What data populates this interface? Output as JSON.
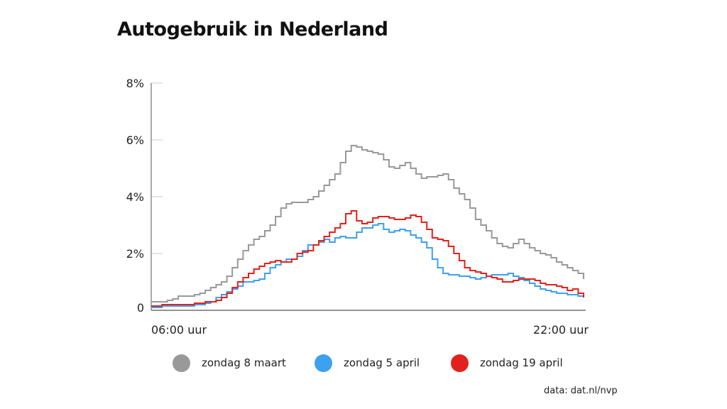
{
  "title": "Autogebruik in Nederland",
  "source": "data: dat.nl/nvp",
  "chart_data": {
    "type": "line",
    "title": "Autogebruik in Nederland",
    "xlabel": "",
    "ylabel": "",
    "x_tick_labels": [
      "06:00 uur",
      "22:00 uur"
    ],
    "x_range_hours": [
      6,
      22
    ],
    "y_ticks": [
      {
        "value": 0,
        "label": "0"
      },
      {
        "value": 2,
        "label": "2%"
      },
      {
        "value": 4,
        "label": "4%"
      },
      {
        "value": 6,
        "label": "6%"
      },
      {
        "value": 8,
        "label": "8%"
      }
    ],
    "ylim": [
      0,
      8
    ],
    "grid": false,
    "legend_position": "bottom",
    "step_hours": 0.25,
    "series": [
      {
        "name": "zondag 8 maart",
        "color": "#999999",
        "values": [
          0.3,
          0.3,
          0.3,
          0.35,
          0.4,
          0.5,
          0.5,
          0.5,
          0.55,
          0.6,
          0.7,
          0.8,
          0.9,
          1.0,
          1.2,
          1.5,
          1.8,
          2.1,
          2.3,
          2.5,
          2.6,
          2.8,
          3.0,
          3.3,
          3.6,
          3.75,
          3.8,
          3.8,
          3.8,
          3.9,
          4.0,
          4.2,
          4.4,
          4.6,
          4.8,
          5.2,
          5.6,
          5.8,
          5.75,
          5.65,
          5.6,
          5.55,
          5.5,
          5.3,
          5.05,
          5.0,
          5.1,
          5.2,
          5.0,
          4.8,
          4.65,
          4.7,
          4.7,
          4.75,
          4.8,
          4.6,
          4.3,
          4.1,
          3.9,
          3.6,
          3.2,
          3.0,
          2.8,
          2.55,
          2.35,
          2.25,
          2.2,
          2.35,
          2.5,
          2.35,
          2.2,
          2.1,
          2.0,
          1.95,
          1.85,
          1.7,
          1.6,
          1.5,
          1.4,
          1.3,
          1.1
        ]
      },
      {
        "name": "zondag 5 april",
        "color": "#3da0f0",
        "values": [
          0.1,
          0.1,
          0.15,
          0.15,
          0.15,
          0.15,
          0.15,
          0.15,
          0.2,
          0.2,
          0.25,
          0.3,
          0.45,
          0.55,
          0.65,
          0.75,
          0.85,
          1.0,
          1.0,
          1.05,
          1.1,
          1.3,
          1.5,
          1.6,
          1.7,
          1.8,
          1.8,
          1.9,
          2.1,
          2.3,
          2.3,
          2.4,
          2.5,
          2.4,
          2.55,
          2.6,
          2.55,
          2.55,
          2.75,
          2.9,
          2.9,
          3.0,
          3.05,
          2.85,
          2.75,
          2.8,
          2.85,
          2.8,
          2.65,
          2.55,
          2.4,
          2.2,
          1.8,
          1.5,
          1.3,
          1.25,
          1.25,
          1.2,
          1.2,
          1.15,
          1.1,
          1.15,
          1.2,
          1.25,
          1.25,
          1.25,
          1.3,
          1.2,
          1.15,
          1.05,
          0.95,
          0.85,
          0.75,
          0.7,
          0.65,
          0.6,
          0.6,
          0.55,
          0.55,
          0.5,
          0.45
        ]
      },
      {
        "name": "zondag 19 april",
        "color": "#e3211c",
        "values": [
          0.15,
          0.15,
          0.2,
          0.2,
          0.2,
          0.2,
          0.2,
          0.2,
          0.25,
          0.25,
          0.3,
          0.3,
          0.35,
          0.45,
          0.6,
          0.8,
          1.0,
          1.15,
          1.3,
          1.45,
          1.55,
          1.65,
          1.7,
          1.75,
          1.7,
          1.7,
          1.8,
          2.0,
          2.05,
          2.1,
          2.3,
          2.45,
          2.6,
          2.75,
          2.9,
          3.05,
          3.4,
          3.5,
          3.15,
          3.05,
          3.1,
          3.25,
          3.3,
          3.3,
          3.25,
          3.2,
          3.2,
          3.25,
          3.35,
          3.3,
          3.1,
          2.85,
          2.55,
          2.5,
          2.45,
          2.25,
          2.0,
          1.75,
          1.5,
          1.4,
          1.35,
          1.3,
          1.2,
          1.15,
          1.1,
          1.0,
          1.0,
          1.05,
          1.1,
          1.1,
          1.1,
          1.05,
          0.95,
          0.9,
          0.9,
          0.85,
          0.8,
          0.7,
          0.75,
          0.6,
          0.45
        ]
      }
    ]
  }
}
